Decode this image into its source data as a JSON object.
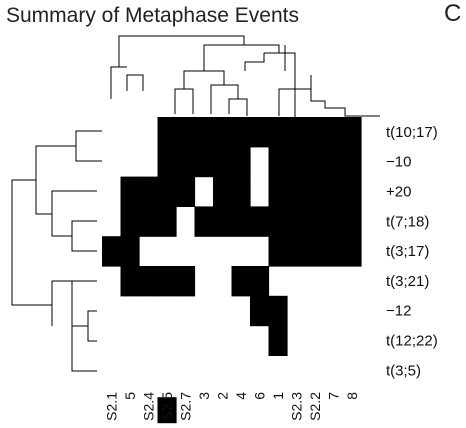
{
  "page": {
    "title": "Summary of Metaphase Events",
    "panel_letter": "C"
  },
  "chart_data": {
    "type": "heatmap",
    "title": "Summary of Metaphase Events",
    "columns": [
      "S2.1",
      "5",
      "S2.4",
      "S2.5",
      "S2.7",
      "3",
      "2",
      "4",
      "6",
      "1",
      "S2.3",
      "S2.2",
      "7",
      "8"
    ],
    "rows": [
      "t(10;17)",
      "−10",
      "+20",
      "t(7;18)",
      "t(3;17)",
      "t(3;21)",
      "−12",
      "t(12;22)",
      "t(3;5)"
    ],
    "matrix": [
      [
        0,
        0,
        0,
        1,
        1,
        1,
        1,
        1,
        1,
        1,
        1,
        1,
        1,
        1
      ],
      [
        0,
        0,
        0,
        1,
        1,
        1,
        1,
        1,
        0,
        1,
        1,
        1,
        1,
        1
      ],
      [
        0,
        1,
        1,
        1,
        1,
        0,
        1,
        1,
        0,
        1,
        1,
        1,
        1,
        1
      ],
      [
        0,
        1,
        1,
        1,
        0,
        1,
        1,
        1,
        1,
        1,
        1,
        1,
        1,
        1
      ],
      [
        1,
        1,
        0,
        0,
        0,
        0,
        0,
        0,
        0,
        1,
        1,
        1,
        1,
        1
      ],
      [
        0,
        1,
        1,
        1,
        1,
        0,
        0,
        1,
        1,
        0,
        0,
        0,
        0,
        0
      ],
      [
        0,
        0,
        0,
        0,
        0,
        0,
        0,
        0,
        1,
        1,
        0,
        0,
        0,
        0
      ],
      [
        0,
        0,
        0,
        0,
        0,
        0,
        0,
        0,
        0,
        1,
        0,
        0,
        0,
        0
      ],
      [
        0,
        0,
        0,
        0,
        0,
        0,
        0,
        0,
        0,
        0,
        0,
        0,
        0,
        0
      ]
    ],
    "extra_marks": [
      {
        "column": "S2.5",
        "position": "below-grid"
      }
    ],
    "colors": {
      "present": "#000000",
      "absent": "#ffffff"
    },
    "dendrograms": [
      "columns-top",
      "rows-left"
    ],
    "legend": "none"
  }
}
